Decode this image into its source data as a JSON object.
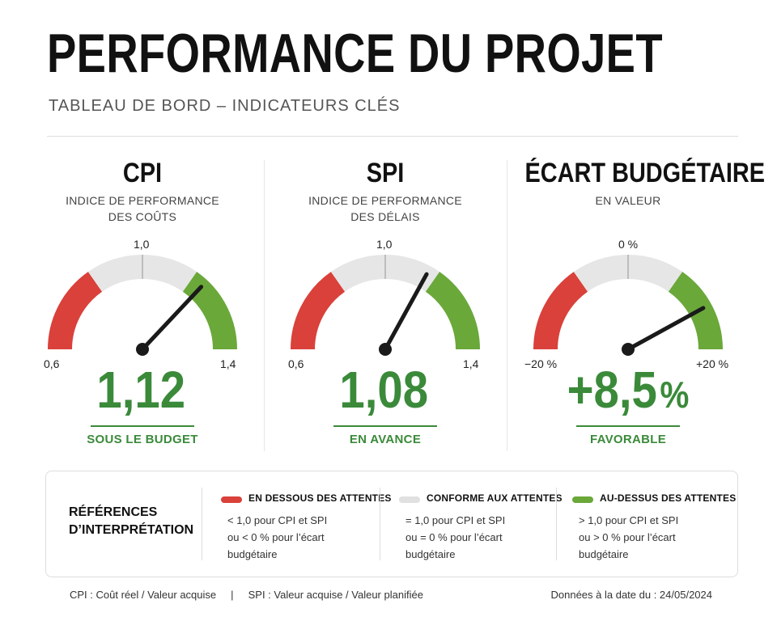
{
  "header": {
    "title": "PERFORMANCE DU PROJET",
    "subtitle": "TABLEAU DE BORD – INDICATEURS CLÉS"
  },
  "colors": {
    "red": "#d9413a",
    "gray": "#e6e6e6",
    "green": "#6aa83a",
    "value_green": "#3a8a3a",
    "needle": "#1a1a1a"
  },
  "kpis": [
    {
      "title": "CPI",
      "description": "INDICE DE PERFORMANCE\nDES COÛTS",
      "min_label": "0,6",
      "mid_label": "1,0",
      "max_label": "1,4",
      "min": 0.6,
      "max": 1.4,
      "value": 1.12,
      "value_text": "1,12",
      "unit": "",
      "status": "SOUS LE BUDGET"
    },
    {
      "title": "SPI",
      "description": "INDICE DE PERFORMANCE\nDES DÉLAIS",
      "min_label": "0,6",
      "mid_label": "1,0",
      "max_label": "1,4",
      "min": 0.6,
      "max": 1.4,
      "value": 1.08,
      "value_text": "1,08",
      "unit": "",
      "status": "EN AVANCE"
    },
    {
      "title": "ÉCART BUDGÉTAIRE",
      "description": "EN VALEUR",
      "min_label": "−20 %",
      "mid_label": "0 %",
      "max_label": "+20 %",
      "min": -20,
      "max": 20,
      "value": 8.5,
      "value_text": "+8,5",
      "unit": "%",
      "status": "FAVORABLE"
    }
  ],
  "legend": {
    "title": "RÉFÉRENCES D’INTERPRÉTATION",
    "items": [
      {
        "label": "EN DESSOUS DES ATTENTES",
        "color": "#d9413a",
        "text": "< 1,0 pour CPI et SPI\nou < 0 % pour l’écart\nbudgétaire"
      },
      {
        "label": "CONFORME AUX ATTENTES",
        "color": "#e0e0e0",
        "text": "= 1,0 pour CPI et SPI\nou = 0 % pour l’écart\nbudgétaire"
      },
      {
        "label": "AU-DESSUS DES ATTENTES",
        "color": "#6aa83a",
        "text": "> 1,0 pour CPI et SPI\nou > 0 % pour l’écart\nbudgétaire"
      }
    ]
  },
  "footer": {
    "formulas": "CPI : Coût réel / Valeur acquise     |     SPI : Valeur acquise / Valeur planifiée",
    "date": "Données à la date du : 24/05/2024"
  }
}
